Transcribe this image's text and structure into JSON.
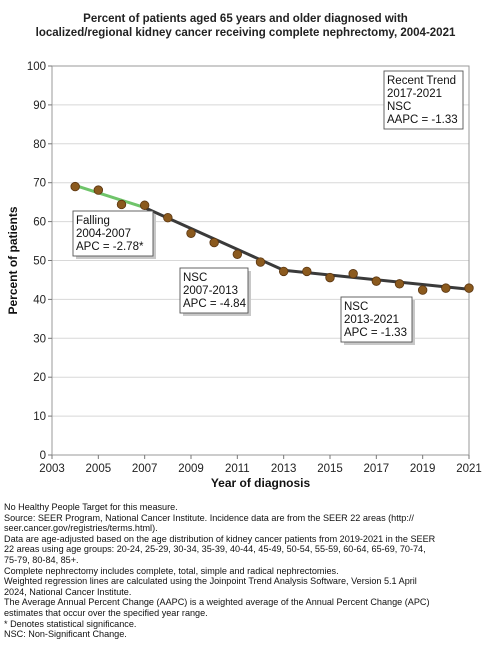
{
  "chart_data": {
    "type": "line",
    "title": "Percent of patients aged 65 years and older diagnosed with localized/regional kidney cancer receiving complete nephrectomy, 2004-2021",
    "title_lines": [
      "Percent of patients aged 65 years and older diagnosed with",
      "localized/regional kidney cancer receiving complete nephrectomy, 2004-2021"
    ],
    "xlabel": "Year of diagnosis",
    "ylabel": "Percent of patients",
    "xlim": [
      2003,
      2021
    ],
    "ylim": [
      0,
      100
    ],
    "x_ticks": [
      2003,
      2005,
      2007,
      2009,
      2011,
      2013,
      2015,
      2017,
      2019,
      2021
    ],
    "y_ticks": [
      0,
      10,
      20,
      30,
      40,
      50,
      60,
      70,
      80,
      90,
      100
    ],
    "grid": true,
    "observed": {
      "x": [
        2004,
        2005,
        2006,
        2007,
        2008,
        2009,
        2010,
        2011,
        2012,
        2013,
        2014,
        2015,
        2016,
        2017,
        2018,
        2019,
        2020,
        2021
      ],
      "y": [
        69.0,
        68.1,
        64.4,
        64.2,
        61.0,
        57.0,
        54.6,
        51.6,
        49.6,
        47.2,
        47.2,
        45.6,
        46.6,
        44.7,
        44.0,
        42.4,
        42.9,
        42.9
      ]
    },
    "trends": [
      {
        "label": "Falling",
        "period": "2004-2007",
        "apc": "APC = -2.78*",
        "x": [
          2004,
          2007
        ],
        "y": [
          69.3,
          63.6
        ],
        "color": "#6fc46a"
      },
      {
        "label": "NSC",
        "period": "2007-2013",
        "apc": "APC = -4.84",
        "x": [
          2007,
          2013
        ],
        "y": [
          63.6,
          47.5
        ],
        "color": "#3a3a3a"
      },
      {
        "label": "NSC",
        "period": "2013-2021",
        "apc": "APC = -1.33",
        "x": [
          2013,
          2021
        ],
        "y": [
          47.5,
          42.6
        ],
        "color": "#3a3a3a"
      }
    ],
    "recent_trend": [
      "Recent Trend",
      "2017-2021",
      "NSC",
      "AAPC = -1.33"
    ],
    "colors": {
      "point": "#8b5a1e",
      "point_edge": "#5a3510",
      "grid": "#d8d8d8"
    }
  },
  "notes": [
    "No Healthy People Target for this measure.",
    "Source: SEER Program, National Cancer Institute. Incidence data are from the SEER 22 areas (http://",
    "seer.cancer.gov/registries/terms.html).",
    "Data are age-adjusted based on the age distribution of kidney cancer patients from 2019-2021 in the SEER",
    "22 areas using age groups: 20-24, 25-29, 30-34, 35-39, 40-44, 45-49, 50-54, 55-59, 60-64, 65-69, 70-74,",
    "75-79, 80-84, 85+.",
    "Complete nephrectomy includes complete, total, simple and radical nephrectomies.",
    "Weighted regression lines are calculated using the Joinpoint Trend Analysis Software, Version 5.1 April",
    "2024, National Cancer Institute.",
    "The Average Annual Percent Change (AAPC) is a weighted average of the Annual Percent Change (APC)",
    "estimates that occur over the specified year range.",
    "* Denotes statistical significance.",
    "NSC: Non-Significant Change."
  ]
}
